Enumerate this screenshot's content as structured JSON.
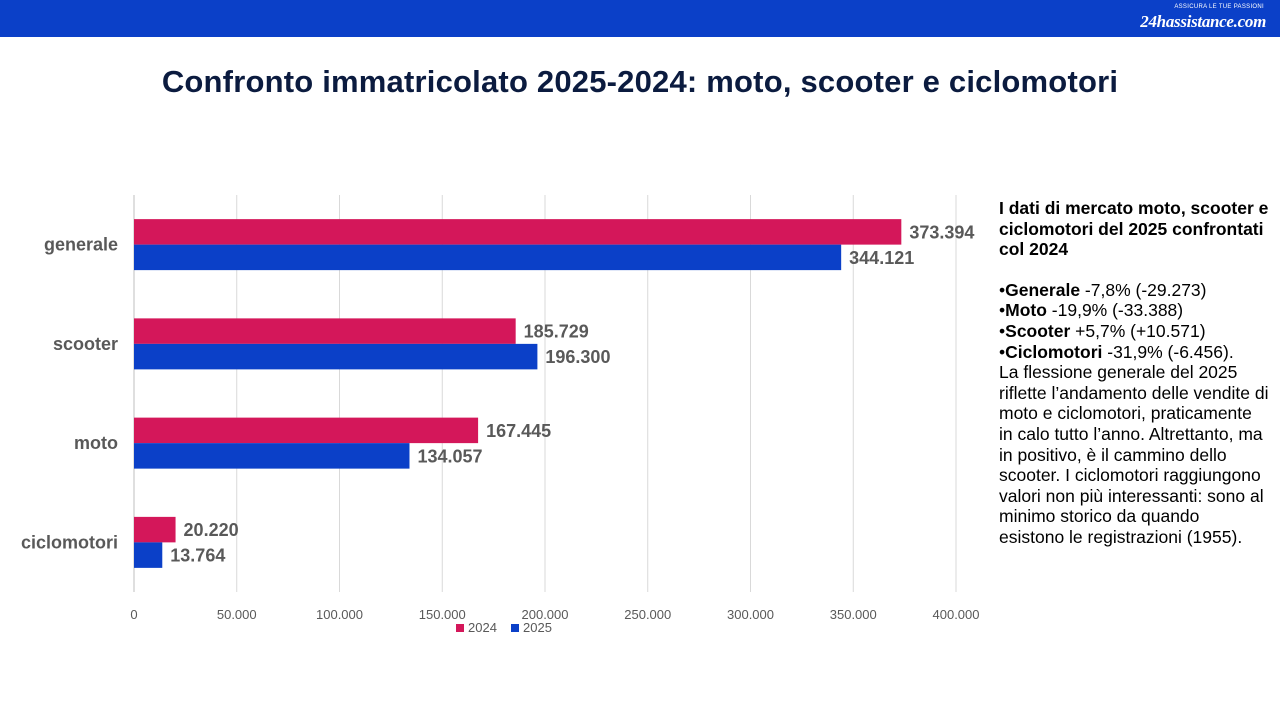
{
  "header": {
    "logo_tagline": "ASSICURA LE TUE PASSIONI",
    "logo_brand": "24hassistance.com",
    "bar_color": "#0b40c8"
  },
  "title": "Confronto immatricolato 2025-2024: moto, scooter e ciclomotori",
  "chart_data": {
    "type": "bar",
    "orientation": "horizontal",
    "categories": [
      "generale",
      "scooter",
      "moto",
      "ciclomotori"
    ],
    "series": [
      {
        "name": "2024",
        "color": "#d4175a",
        "values": [
          373394,
          185729,
          167445,
          20220
        ],
        "labels": [
          "373.394",
          "185.729",
          "167.445",
          "20.220"
        ]
      },
      {
        "name": "2025",
        "color": "#0b40c8",
        "values": [
          344121,
          196300,
          134057,
          13764
        ],
        "labels": [
          "344.121",
          "196.300",
          "134.057",
          "13.764"
        ]
      }
    ],
    "xlim": [
      0,
      400000
    ],
    "x_ticks": [
      "0",
      "50.000",
      "100.000",
      "150.000",
      "200.000",
      "250.000",
      "300.000",
      "350.000",
      "400.000"
    ],
    "grid": "vertical",
    "legend": "bottom"
  },
  "side": {
    "heading": "I dati di mercato moto, scooter e ciclomotori del 2025 confrontati col 2024",
    "bullets": [
      {
        "label": "Generale",
        "text": " -7,8% (-29.273)"
      },
      {
        "label": "Moto",
        "text": " -19,9% (-33.388)"
      },
      {
        "label": "Scooter",
        "text": " +5,7% (+10.571)"
      },
      {
        "label": "Ciclomotori",
        "text": " -31,9% (-6.456)."
      }
    ],
    "paragraph": "La flessione generale del 2025 riflette l’andamento delle vendite di moto e ciclomotori, praticamente in calo tutto l’anno. Altrettanto, ma in positivo, è il cammino dello scooter. I ciclomotori raggiungono valori non più interessanti: sono al minimo storico da quando esistono le registrazioni (1955)."
  }
}
